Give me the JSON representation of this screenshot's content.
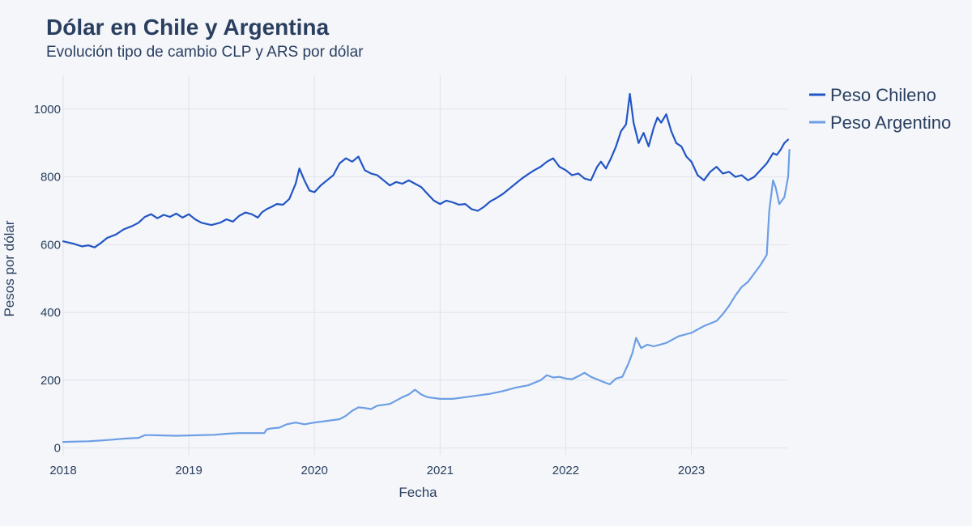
{
  "chart_data": {
    "type": "line",
    "title": "Dólar en Chile y Argentina",
    "subtitle": "Evolución tipo de cambio CLP y ARS por dólar",
    "xlabel": "Fecha",
    "ylabel": "Pesos por dólar",
    "xlim": [
      2018.0,
      2023.77
    ],
    "ylim": [
      -20,
      1100
    ],
    "x_ticks": [
      2018,
      2019,
      2020,
      2021,
      2022,
      2023
    ],
    "x_tick_labels": [
      "2018",
      "2019",
      "2020",
      "2021",
      "2022",
      "2023"
    ],
    "y_ticks": [
      0,
      200,
      400,
      600,
      800,
      1000
    ],
    "y_tick_labels": [
      "0",
      "200",
      "400",
      "600",
      "800",
      "1000"
    ],
    "grid": true,
    "legend_position": "top-right",
    "series": [
      {
        "name": "Peso Chileno",
        "color": "#2255c4",
        "points": [
          [
            2018.0,
            610
          ],
          [
            2018.08,
            603
          ],
          [
            2018.15,
            595
          ],
          [
            2018.2,
            598
          ],
          [
            2018.25,
            592
          ],
          [
            2018.3,
            605
          ],
          [
            2018.35,
            620
          ],
          [
            2018.42,
            630
          ],
          [
            2018.48,
            645
          ],
          [
            2018.55,
            655
          ],
          [
            2018.6,
            665
          ],
          [
            2018.65,
            682
          ],
          [
            2018.7,
            690
          ],
          [
            2018.75,
            678
          ],
          [
            2018.8,
            688
          ],
          [
            2018.85,
            682
          ],
          [
            2018.9,
            692
          ],
          [
            2018.95,
            680
          ],
          [
            2019.0,
            690
          ],
          [
            2019.05,
            675
          ],
          [
            2019.1,
            665
          ],
          [
            2019.18,
            658
          ],
          [
            2019.25,
            665
          ],
          [
            2019.3,
            675
          ],
          [
            2019.35,
            668
          ],
          [
            2019.4,
            685
          ],
          [
            2019.45,
            695
          ],
          [
            2019.5,
            690
          ],
          [
            2019.55,
            680
          ],
          [
            2019.58,
            695
          ],
          [
            2019.62,
            705
          ],
          [
            2019.66,
            712
          ],
          [
            2019.7,
            720
          ],
          [
            2019.75,
            718
          ],
          [
            2019.8,
            735
          ],
          [
            2019.85,
            780
          ],
          [
            2019.88,
            825
          ],
          [
            2019.92,
            790
          ],
          [
            2019.96,
            760
          ],
          [
            2020.0,
            755
          ],
          [
            2020.05,
            775
          ],
          [
            2020.1,
            790
          ],
          [
            2020.15,
            805
          ],
          [
            2020.2,
            840
          ],
          [
            2020.25,
            855
          ],
          [
            2020.3,
            845
          ],
          [
            2020.35,
            860
          ],
          [
            2020.4,
            820
          ],
          [
            2020.45,
            810
          ],
          [
            2020.5,
            805
          ],
          [
            2020.55,
            790
          ],
          [
            2020.6,
            775
          ],
          [
            2020.65,
            785
          ],
          [
            2020.7,
            780
          ],
          [
            2020.75,
            790
          ],
          [
            2020.8,
            780
          ],
          [
            2020.85,
            770
          ],
          [
            2020.9,
            750
          ],
          [
            2020.95,
            730
          ],
          [
            2021.0,
            720
          ],
          [
            2021.05,
            730
          ],
          [
            2021.1,
            725
          ],
          [
            2021.15,
            718
          ],
          [
            2021.2,
            720
          ],
          [
            2021.25,
            705
          ],
          [
            2021.3,
            700
          ],
          [
            2021.35,
            712
          ],
          [
            2021.4,
            728
          ],
          [
            2021.45,
            738
          ],
          [
            2021.5,
            750
          ],
          [
            2021.55,
            765
          ],
          [
            2021.6,
            780
          ],
          [
            2021.65,
            795
          ],
          [
            2021.7,
            808
          ],
          [
            2021.75,
            820
          ],
          [
            2021.8,
            830
          ],
          [
            2021.85,
            845
          ],
          [
            2021.9,
            855
          ],
          [
            2021.95,
            830
          ],
          [
            2022.0,
            820
          ],
          [
            2022.05,
            805
          ],
          [
            2022.1,
            810
          ],
          [
            2022.15,
            795
          ],
          [
            2022.2,
            790
          ],
          [
            2022.25,
            830
          ],
          [
            2022.28,
            845
          ],
          [
            2022.32,
            825
          ],
          [
            2022.36,
            855
          ],
          [
            2022.4,
            890
          ],
          [
            2022.44,
            935
          ],
          [
            2022.48,
            955
          ],
          [
            2022.51,
            1045
          ],
          [
            2022.54,
            960
          ],
          [
            2022.58,
            900
          ],
          [
            2022.62,
            930
          ],
          [
            2022.66,
            890
          ],
          [
            2022.7,
            945
          ],
          [
            2022.73,
            975
          ],
          [
            2022.76,
            960
          ],
          [
            2022.8,
            985
          ],
          [
            2022.84,
            935
          ],
          [
            2022.88,
            900
          ],
          [
            2022.92,
            890
          ],
          [
            2022.96,
            860
          ],
          [
            2023.0,
            845
          ],
          [
            2023.05,
            805
          ],
          [
            2023.1,
            790
          ],
          [
            2023.15,
            815
          ],
          [
            2023.2,
            830
          ],
          [
            2023.25,
            810
          ],
          [
            2023.3,
            815
          ],
          [
            2023.35,
            800
          ],
          [
            2023.4,
            805
          ],
          [
            2023.45,
            790
          ],
          [
            2023.5,
            800
          ],
          [
            2023.55,
            820
          ],
          [
            2023.6,
            840
          ],
          [
            2023.65,
            870
          ],
          [
            2023.68,
            865
          ],
          [
            2023.71,
            880
          ],
          [
            2023.74,
            900
          ],
          [
            2023.77,
            910
          ]
        ]
      },
      {
        "name": "Peso Argentino",
        "color": "#6d9ee4",
        "points": [
          [
            2018.0,
            18
          ],
          [
            2018.1,
            19
          ],
          [
            2018.2,
            20
          ],
          [
            2018.3,
            22
          ],
          [
            2018.4,
            25
          ],
          [
            2018.5,
            28
          ],
          [
            2018.6,
            30
          ],
          [
            2018.65,
            38
          ],
          [
            2018.7,
            38
          ],
          [
            2018.8,
            37
          ],
          [
            2018.9,
            36
          ],
          [
            2019.0,
            37
          ],
          [
            2019.1,
            38
          ],
          [
            2019.2,
            39
          ],
          [
            2019.3,
            42
          ],
          [
            2019.4,
            44
          ],
          [
            2019.5,
            44
          ],
          [
            2019.6,
            44
          ],
          [
            2019.62,
            55
          ],
          [
            2019.66,
            58
          ],
          [
            2019.72,
            60
          ],
          [
            2019.78,
            70
          ],
          [
            2019.85,
            75
          ],
          [
            2019.92,
            70
          ],
          [
            2020.0,
            75
          ],
          [
            2020.1,
            80
          ],
          [
            2020.2,
            85
          ],
          [
            2020.25,
            95
          ],
          [
            2020.3,
            110
          ],
          [
            2020.35,
            120
          ],
          [
            2020.4,
            118
          ],
          [
            2020.45,
            115
          ],
          [
            2020.5,
            125
          ],
          [
            2020.6,
            130
          ],
          [
            2020.7,
            150
          ],
          [
            2020.75,
            158
          ],
          [
            2020.8,
            172
          ],
          [
            2020.85,
            158
          ],
          [
            2020.9,
            150
          ],
          [
            2021.0,
            145
          ],
          [
            2021.1,
            145
          ],
          [
            2021.2,
            150
          ],
          [
            2021.3,
            155
          ],
          [
            2021.4,
            160
          ],
          [
            2021.5,
            168
          ],
          [
            2021.6,
            178
          ],
          [
            2021.7,
            185
          ],
          [
            2021.8,
            200
          ],
          [
            2021.85,
            215
          ],
          [
            2021.9,
            208
          ],
          [
            2021.95,
            210
          ],
          [
            2022.0,
            205
          ],
          [
            2022.05,
            203
          ],
          [
            2022.1,
            212
          ],
          [
            2022.15,
            222
          ],
          [
            2022.2,
            210
          ],
          [
            2022.3,
            195
          ],
          [
            2022.35,
            188
          ],
          [
            2022.4,
            205
          ],
          [
            2022.45,
            210
          ],
          [
            2022.5,
            250
          ],
          [
            2022.53,
            280
          ],
          [
            2022.56,
            325
          ],
          [
            2022.6,
            295
          ],
          [
            2022.65,
            305
          ],
          [
            2022.7,
            300
          ],
          [
            2022.8,
            310
          ],
          [
            2022.9,
            330
          ],
          [
            2023.0,
            340
          ],
          [
            2023.1,
            360
          ],
          [
            2023.2,
            375
          ],
          [
            2023.25,
            395
          ],
          [
            2023.3,
            420
          ],
          [
            2023.35,
            450
          ],
          [
            2023.4,
            475
          ],
          [
            2023.45,
            490
          ],
          [
            2023.5,
            515
          ],
          [
            2023.55,
            540
          ],
          [
            2023.6,
            570
          ],
          [
            2023.62,
            700
          ],
          [
            2023.65,
            790
          ],
          [
            2023.67,
            770
          ],
          [
            2023.7,
            720
          ],
          [
            2023.74,
            740
          ],
          [
            2023.77,
            800
          ],
          [
            2023.78,
            880
          ]
        ]
      }
    ]
  }
}
